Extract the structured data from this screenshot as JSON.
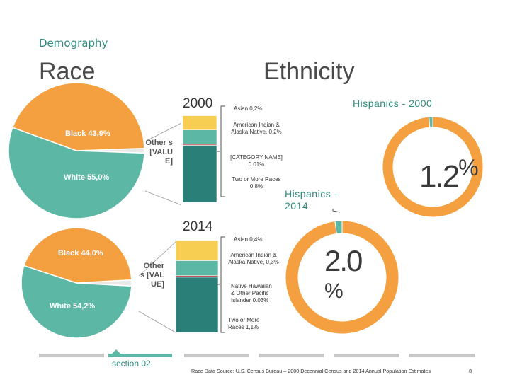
{
  "header": {
    "category": "Demography",
    "race_title": "Race",
    "ethnicity_title": "Ethnicity"
  },
  "race_pies": [
    {
      "year": "2000",
      "slices": [
        {
          "name": "Black",
          "label": "Black 43,9%",
          "value": 43.9,
          "color": "#f4a041"
        },
        {
          "name": "White",
          "label": "White 55,0%",
          "value": 55.0,
          "color": "#5cb8a5"
        },
        {
          "name": "Other",
          "label": "Other s [VALU E]",
          "value": 1.1,
          "color": "#e8e8e8"
        }
      ]
    },
    {
      "year": "2014",
      "slices": [
        {
          "name": "Black",
          "label": "Black 44,0%",
          "value": 44.0,
          "color": "#f4a041"
        },
        {
          "name": "White",
          "label": "White 54,2%",
          "value": 54.2,
          "color": "#5cb8a5"
        },
        {
          "name": "Other",
          "label": "Other s [VAL UE]",
          "value": 1.8,
          "color": "#e8e8e8"
        }
      ]
    }
  ],
  "chart_data": [
    {
      "type": "pie",
      "title": "Race 2000",
      "categories": [
        "Black",
        "White",
        "Others"
      ],
      "values": [
        43.9,
        55.0,
        1.1
      ]
    },
    {
      "type": "pie",
      "title": "Race 2014",
      "categories": [
        "Black",
        "White",
        "Others"
      ],
      "values": [
        44.0,
        54.2,
        1.8
      ]
    },
    {
      "type": "bar",
      "title": "Other races 2000 (stacked)",
      "categories": [
        "Two or More Races",
        "[CATEGORY NAME]",
        "American Indian & Alaska Native",
        "Asian"
      ],
      "values": [
        0.8,
        0.01,
        0.2,
        0.2
      ]
    },
    {
      "type": "bar",
      "title": "Other races 2014 (stacked)",
      "categories": [
        "Two or More Races",
        "Native Hawaiian & Other Pacific Islander",
        "American Indian & Alaska Native",
        "Asian"
      ],
      "values": [
        1.1,
        0.03,
        0.3,
        0.4
      ]
    },
    {
      "type": "pie",
      "title": "Hispanics - 2000",
      "categories": [
        "Hispanic",
        "Non-Hispanic"
      ],
      "values": [
        1.2,
        98.8
      ]
    },
    {
      "type": "pie",
      "title": "Hispanics - 2014",
      "categories": [
        "Hispanic",
        "Non-Hispanic"
      ],
      "values": [
        2.0,
        98.0
      ]
    }
  ],
  "stacks": [
    {
      "year": "2000",
      "segments": [
        {
          "value": 0.8,
          "color": "#2a7f78",
          "label": "Two or More Races 0,8%"
        },
        {
          "value": 0.01,
          "color": "#c94a4a",
          "label": "[CATEGORY NAME] 0.01%"
        },
        {
          "value": 0.2,
          "color": "#5cb8a5",
          "label": "American Indian & Alaska Native, 0,2%"
        },
        {
          "value": 0.2,
          "color": "#f7cd52",
          "label": "Asian 0,2%"
        }
      ]
    },
    {
      "year": "2014",
      "segments": [
        {
          "value": 1.1,
          "color": "#2a7f78",
          "label": "Two or More Races 1,1%"
        },
        {
          "value": 0.03,
          "color": "#c94a4a",
          "label": "Native Hawaiian & Other Pacific Islander 0.03%"
        },
        {
          "value": 0.3,
          "color": "#5cb8a5",
          "label": "American Indian & Alaska Native, 0,3%"
        },
        {
          "value": 0.4,
          "color": "#f7cd52",
          "label": "Asian 0,4%"
        }
      ]
    }
  ],
  "hispanics": [
    {
      "title": "Hispanics - 2000",
      "percent": 1.2,
      "display": "1.2",
      "symbol": "%"
    },
    {
      "title": "Hispanics - 2014",
      "percent": 2.0,
      "display": "2.0",
      "symbol": "%"
    }
  ],
  "colors": {
    "orange": "#f4a041",
    "teal": "#5cb8a5",
    "dark_teal": "#2a7f78",
    "yellow": "#f7cd52",
    "red": "#c94a4a",
    "gray": "#c8c8c8",
    "accent": "#2f8a7e"
  },
  "footer": {
    "section": "section 02",
    "source": "Race Data Source: U.S. Census Bureau – 2000 Decennial Census and 2014 Annual Population Estimates",
    "page": "8"
  }
}
